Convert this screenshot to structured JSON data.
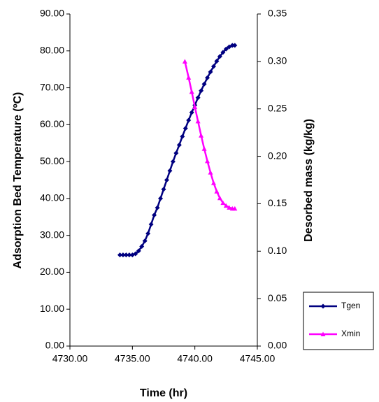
{
  "chart_data": {
    "type": "line",
    "xlabel": "Time (hr)",
    "ylabel": "Adsorption Bed Temperature (ºC)",
    "y2label": "Desorbed mass (kg/kg)",
    "xlim": [
      4730,
      4745
    ],
    "xticks": [
      {
        "value": 4730,
        "label": "4730.00"
      },
      {
        "value": 4735,
        "label": "4735.00"
      },
      {
        "value": 4740,
        "label": "4740.00"
      },
      {
        "value": 4745,
        "label": "4745.00"
      }
    ],
    "ylim": [
      0,
      90
    ],
    "yticks": [
      {
        "value": 0,
        "label": "0.00"
      },
      {
        "value": 10,
        "label": "10.00"
      },
      {
        "value": 20,
        "label": "20.00"
      },
      {
        "value": 30,
        "label": "30.00"
      },
      {
        "value": 40,
        "label": "40.00"
      },
      {
        "value": 50,
        "label": "50.00"
      },
      {
        "value": 60,
        "label": "60.00"
      },
      {
        "value": 70,
        "label": "70.00"
      },
      {
        "value": 80,
        "label": "80.00"
      },
      {
        "value": 90,
        "label": "90.00"
      }
    ],
    "y2lim": [
      0,
      0.35
    ],
    "y2ticks": [
      {
        "value": 0,
        "label": "0.00"
      },
      {
        "value": 0.05,
        "label": "0.05"
      },
      {
        "value": 0.1,
        "label": "0.10"
      },
      {
        "value": 0.15,
        "label": "0.15"
      },
      {
        "value": 0.2,
        "label": "0.20"
      },
      {
        "value": 0.25,
        "label": "0.25"
      },
      {
        "value": 0.3,
        "label": "0.30"
      },
      {
        "value": 0.35,
        "label": "0.35"
      }
    ],
    "grid": false,
    "legend": "lower right",
    "series": [
      {
        "name": "Tgen",
        "color": "#000080",
        "marker": "diamond",
        "x": [
          4734,
          4734.25,
          4734.5,
          4734.75,
          4735,
          4735.25,
          4735.5,
          4735.75,
          4736,
          4736.25,
          4736.5,
          4736.75,
          4737,
          4737.25,
          4737.5,
          4737.75,
          4738,
          4738.25,
          4738.5,
          4738.75,
          4739,
          4739.25,
          4739.5,
          4739.75,
          4740,
          4740.25,
          4740.5,
          4740.75,
          4741,
          4741.25,
          4741.5,
          4741.75,
          4742,
          4742.25,
          4742.5,
          4742.75,
          4743,
          4743.2
        ],
        "values": [
          24.7,
          24.7,
          24.7,
          24.7,
          24.7,
          25,
          25.8,
          27,
          28.5,
          30.5,
          33,
          35.5,
          37.5,
          40,
          42.5,
          45,
          47.5,
          50,
          52.3,
          54.5,
          56.8,
          59,
          61.2,
          63.3,
          65.3,
          67.3,
          69.2,
          71,
          72.7,
          74.3,
          75.8,
          77.2,
          78.5,
          79.6,
          80.5,
          81.1,
          81.5,
          81.5
        ]
      },
      {
        "name": "Xmin",
        "color": "#ff00ff",
        "marker": "triangle",
        "axis": "y2",
        "x": [
          4739.2,
          4739.5,
          4739.75,
          4740,
          4740.25,
          4740.5,
          4740.75,
          4741,
          4741.25,
          4741.5,
          4741.75,
          4742,
          4742.25,
          4742.5,
          4742.75,
          4743,
          4743.2
        ],
        "values": [
          0.3,
          0.283,
          0.268,
          0.252,
          0.237,
          0.222,
          0.208,
          0.195,
          0.183,
          0.172,
          0.163,
          0.156,
          0.151,
          0.148,
          0.146,
          0.145,
          0.145
        ]
      }
    ]
  }
}
